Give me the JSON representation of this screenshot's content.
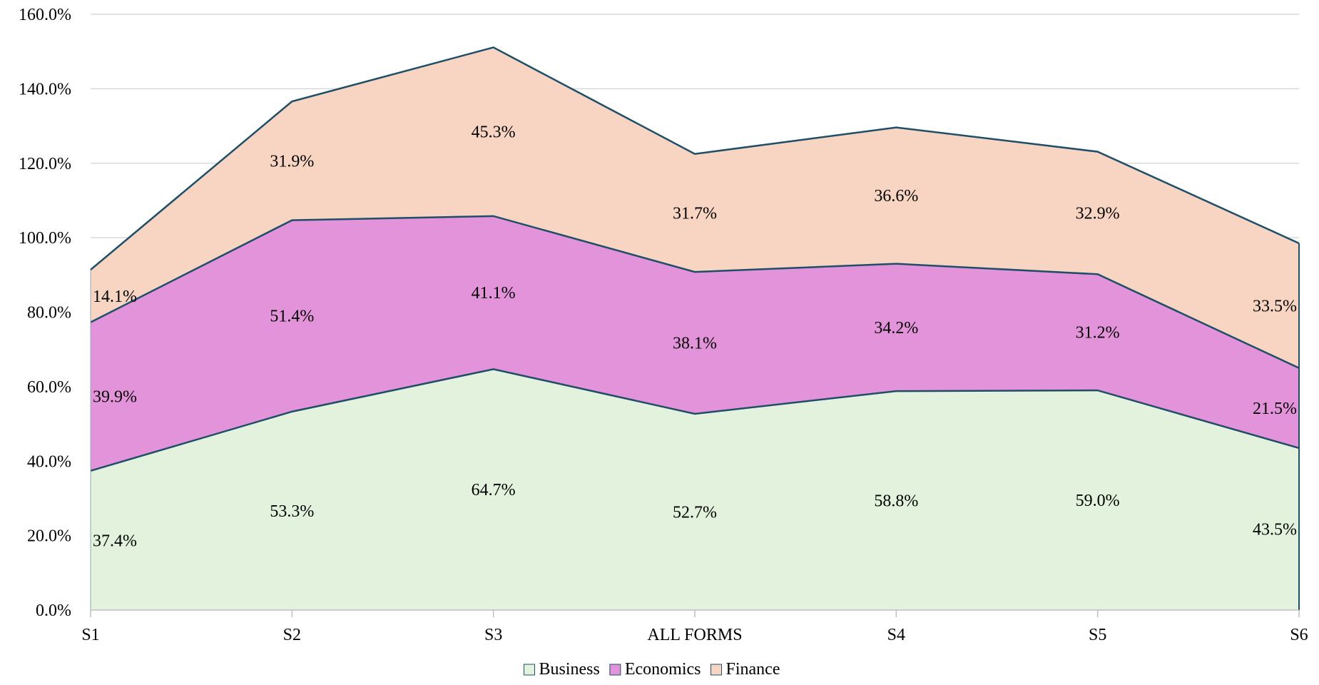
{
  "chart_data": {
    "type": "area",
    "stacked": true,
    "categories": [
      "S1",
      "S2",
      "S3",
      "ALL FORMS",
      "S4",
      "S5",
      "S6"
    ],
    "series": [
      {
        "name": "Business",
        "values": [
          37.4,
          53.3,
          64.7,
          52.7,
          58.8,
          59.0,
          43.5
        ],
        "labels": [
          "37.4%",
          "53.3%",
          "64.7%",
          "52.7%",
          "58.8%",
          "59.0%",
          "43.5%"
        ],
        "fill": "#e2f2dc"
      },
      {
        "name": "Economics",
        "values": [
          39.9,
          51.4,
          41.1,
          38.1,
          34.2,
          31.2,
          21.5
        ],
        "labels": [
          "39.9%",
          "51.4%",
          "41.1%",
          "38.1%",
          "34.2%",
          "31.2%",
          "21.5%"
        ],
        "fill": "#e393d9"
      },
      {
        "name": "Finance",
        "values": [
          14.1,
          31.9,
          45.3,
          31.7,
          36.6,
          32.9,
          33.5
        ],
        "labels": [
          "14.1%",
          "31.9%",
          "45.3%",
          "31.7%",
          "36.6%",
          "32.9%",
          "33.5%"
        ],
        "fill": "#f7d5c2"
      }
    ],
    "ylim": [
      0,
      160
    ],
    "yticks": [
      0,
      20,
      40,
      60,
      80,
      100,
      120,
      140,
      160
    ],
    "ytick_labels": [
      "0.0%",
      "20.0%",
      "40.0%",
      "60.0%",
      "80.0%",
      "100.0%",
      "120.0%",
      "140.0%",
      "160.0%"
    ],
    "line_color": "#1f4e68",
    "grid": true,
    "grid_color": "#d9d9d9",
    "legend_position": "bottom"
  }
}
